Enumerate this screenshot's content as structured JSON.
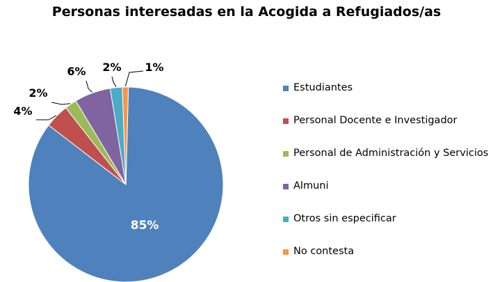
{
  "chart_data": {
    "type": "pie",
    "title": "Personas interesadas en la Acogida a Refugiados/as",
    "legend_position": "right",
    "slices": [
      {
        "label": "Estudiantes",
        "value": 85,
        "value_label": "85%",
        "color": "#4F81BD"
      },
      {
        "label": "Personal Docente e Investigador",
        "value": 4,
        "value_label": "4%",
        "color": "#C0504D"
      },
      {
        "label": "Personal de Administración y Servicios",
        "value": 2,
        "value_label": "2%",
        "color": "#9BBB59"
      },
      {
        "label": "Almuni",
        "value": 6,
        "value_label": "6%",
        "color": "#8064A2"
      },
      {
        "label": "Otros sin especificar",
        "value": 2,
        "value_label": "2%",
        "color": "#4BACC6"
      },
      {
        "label": "No contesta",
        "value": 1,
        "value_label": "1%",
        "color": "#F79646"
      }
    ]
  }
}
